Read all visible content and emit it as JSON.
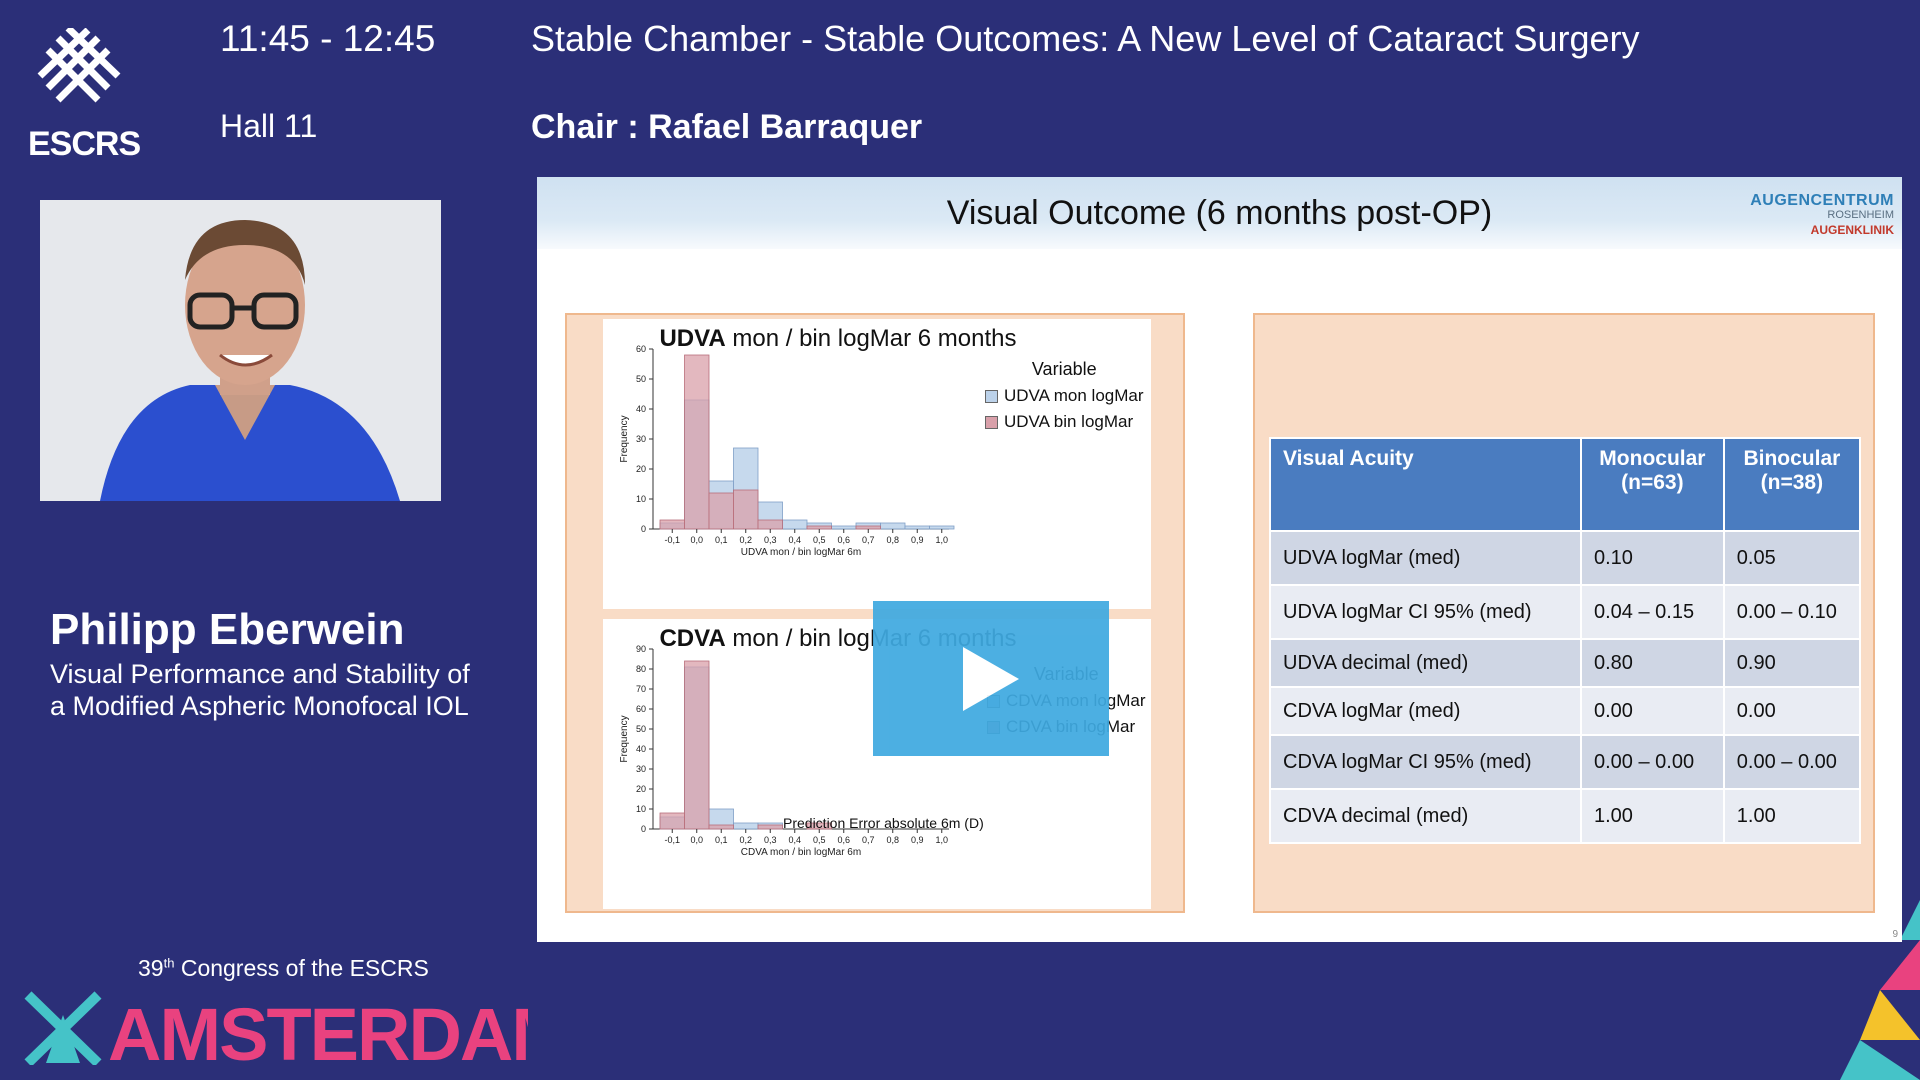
{
  "header": {
    "logo_text": "ESCRS",
    "time": "11:45 - 12:45",
    "hall": "Hall 11",
    "session_title": "Stable Chamber - Stable Outcomes: A New Level of Cataract Surgery",
    "chair": "Chair : Rafael Barraquer"
  },
  "speaker": {
    "name": "Philipp Eberwein",
    "talk_title_line1": "Visual Performance and Stability of",
    "talk_title_line2": "a Modified Aspheric Monofocal IOL"
  },
  "congress": {
    "number": "39",
    "ordinal": "th",
    "text": " Congress of the ESCRS",
    "city": "AMSTERDAM"
  },
  "slide": {
    "title": "Visual Outcome (6 months post-OP)",
    "logo_line1": "AUGENCENTRUM",
    "logo_line2": "ROSENHEIM",
    "logo_line3": "AUGENKLINIK",
    "page_number": "9"
  },
  "colors": {
    "background": "#2b2f78",
    "series_mon": "#bcd2ea",
    "series_bin": "#d9a0aa",
    "table_header": "#4a7cc0",
    "play_button": "#3fa9e0"
  },
  "chart_data": [
    {
      "type": "bar",
      "title_bold": "UDVA",
      "title_rest": " mon / bin logMar 6 months",
      "xlabel": "UDVA mon / bin logMar 6m",
      "ylabel": "Frequency",
      "ylim": [
        0,
        60
      ],
      "yticks": [
        "0",
        "10",
        "20",
        "30",
        "40",
        "50",
        "60"
      ],
      "categories": [
        "-0,1",
        "0,0",
        "0,1",
        "0,2",
        "0,3",
        "0,4",
        "0,5",
        "0,6",
        "0,7",
        "0,8",
        "0,9",
        "1,0"
      ],
      "legend_title": "Variable",
      "series": [
        {
          "name": "UDVA mon logMar",
          "values": [
            2,
            43,
            16,
            27,
            9,
            3,
            2,
            1,
            2,
            2,
            1,
            1
          ]
        },
        {
          "name": "UDVA bin logMar",
          "values": [
            3,
            58,
            12,
            13,
            3,
            0,
            1,
            0,
            1,
            0,
            0,
            0
          ]
        }
      ]
    },
    {
      "type": "bar",
      "title_bold": "CDVA",
      "title_rest": " mon / bin logMar 6 months",
      "xlabel": "CDVA mon / bin logMar 6m",
      "ylabel": "Frequency",
      "ylim": [
        0,
        90
      ],
      "yticks": [
        "0",
        "10",
        "20",
        "30",
        "40",
        "50",
        "60",
        "70",
        "80",
        "90"
      ],
      "categories": [
        "-0,1",
        "0,0",
        "0,1",
        "0,2",
        "0,3",
        "0,4",
        "0,5",
        "0,6",
        "0,7",
        "0,8",
        "0,9",
        "1,0"
      ],
      "legend_title": "Variable",
      "annotation": "Prediction Error absolute 6m (D)",
      "series": [
        {
          "name": "CDVA mon logMar",
          "values": [
            6,
            81,
            10,
            3,
            3,
            0,
            0,
            0,
            0,
            0,
            0,
            0
          ]
        },
        {
          "name": "CDVA bin logMar",
          "values": [
            8,
            84,
            2,
            0,
            2,
            0,
            3,
            0,
            0,
            0,
            0,
            0
          ]
        }
      ]
    }
  ],
  "table": {
    "headers": [
      "Visual Acuity",
      "Monocular\n(n=63)",
      "Binocular\n(n=38)"
    ],
    "rows": [
      [
        "UDVA logMar (med)",
        "0.10",
        "0.05"
      ],
      [
        "UDVA logMar CI 95% (med)",
        "0.04 – 0.15",
        "0.00 – 0.10"
      ],
      [
        "UDVA decimal (med)",
        "0.80",
        "0.90"
      ],
      [
        "CDVA logMar (med)",
        "0.00",
        "0.00"
      ],
      [
        "CDVA logMar CI 95% (med)",
        "0.00 – 0.00",
        "0.00 – 0.00"
      ],
      [
        "CDVA decimal (med)",
        "1.00",
        "1.00"
      ]
    ]
  }
}
